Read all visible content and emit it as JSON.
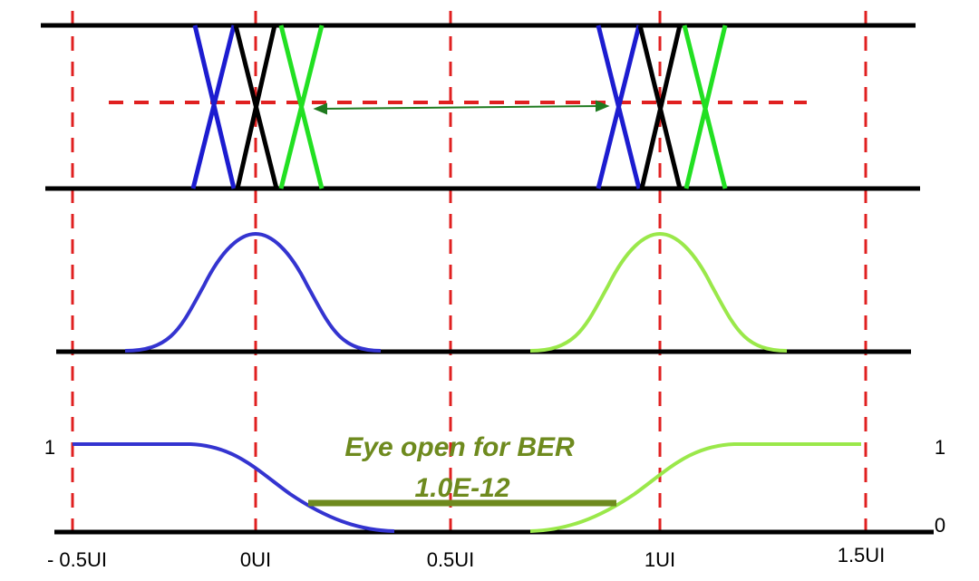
{
  "annotation": {
    "line1": "Eye open for BER",
    "line2": "1.0E-12"
  },
  "axis_labels": [
    "- 0.5UI",
    "0UI",
    "0.5UI",
    "1UI",
    "1.5UI"
  ],
  "level_labels": {
    "left_one": "1",
    "right_one": "1",
    "right_zero": "0"
  }
}
